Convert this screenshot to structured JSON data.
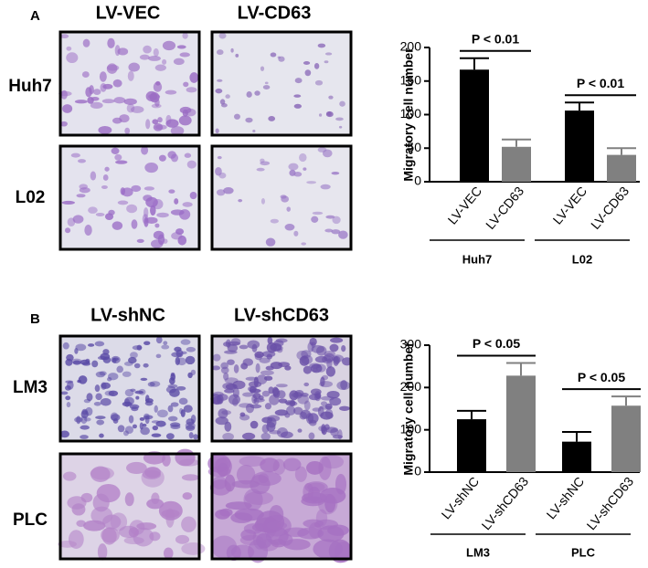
{
  "figure": {
    "panels": [
      {
        "label": "A",
        "columns": [
          "LV-VEC",
          "LV-CD63"
        ],
        "rows": [
          "Huh7",
          "L02"
        ]
      },
      {
        "label": "B",
        "columns": [
          "LV-shNC",
          "LV-shCD63"
        ],
        "rows": [
          "LM3",
          "PLC"
        ]
      }
    ]
  },
  "chart_data": [
    {
      "type": "bar",
      "y_label": "Migratory cell number",
      "groups": [
        "Huh7",
        "L02"
      ],
      "series": [
        {
          "name": "LV-VEC",
          "color": "#000000",
          "values": [
            167,
            106
          ],
          "errors": [
            17,
            12
          ]
        },
        {
          "name": "LV-CD63",
          "color": "#808080",
          "values": [
            52,
            40
          ],
          "errors": [
            11,
            10
          ]
        }
      ],
      "ylim": [
        0,
        200
      ],
      "yticks": [
        0,
        50,
        100,
        150,
        200
      ],
      "annotations": [
        "P < 0.01",
        "P < 0.01"
      ]
    },
    {
      "type": "bar",
      "y_label": "Migratory cell number",
      "groups": [
        "LM3",
        "PLC"
      ],
      "series": [
        {
          "name": "LV-shNC",
          "color": "#000000",
          "values": [
            125,
            72
          ],
          "errors": [
            20,
            23
          ]
        },
        {
          "name": "LV-shCD63",
          "color": "#808080",
          "values": [
            228,
            157
          ],
          "errors": [
            30,
            22
          ]
        }
      ],
      "ylim": [
        0,
        300
      ],
      "yticks": [
        0,
        100,
        200,
        300
      ],
      "annotations": [
        "P < 0.05",
        "P < 0.05"
      ]
    }
  ]
}
